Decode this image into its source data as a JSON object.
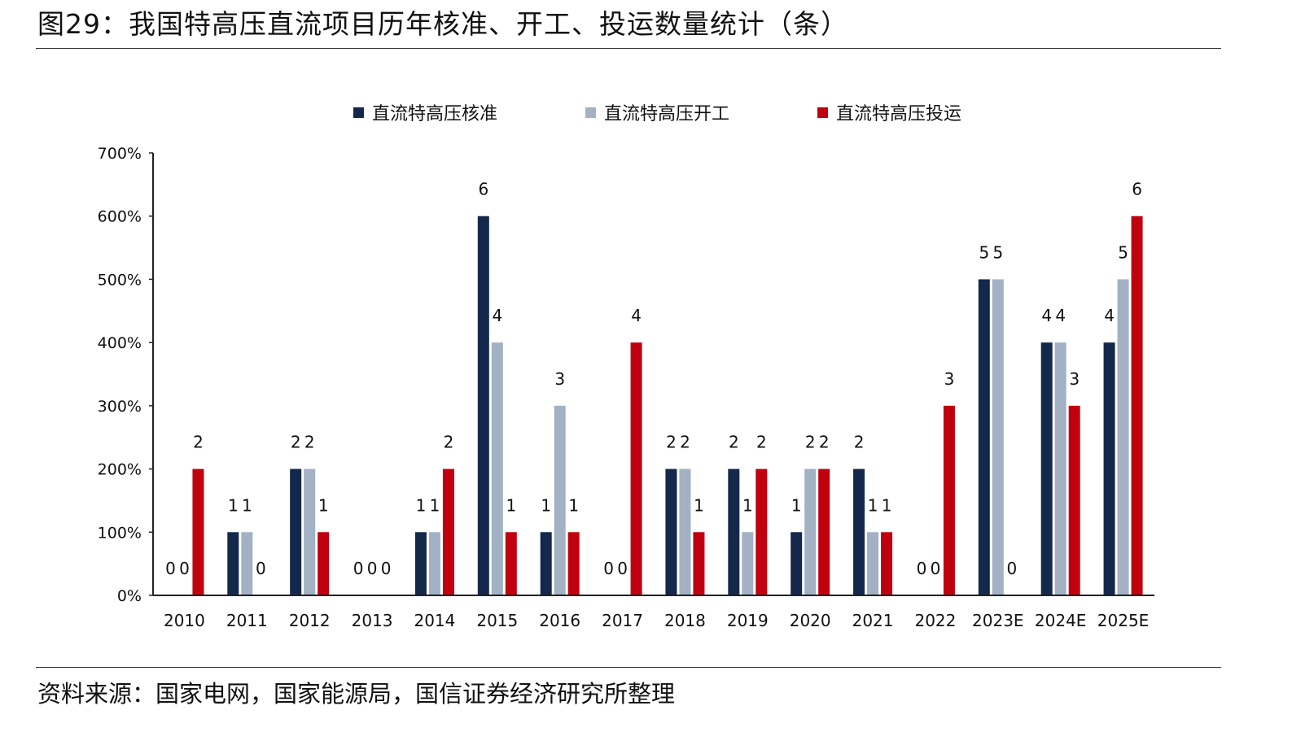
{
  "figure": {
    "title": "图29：我国特高压直流项目历年核准、开工、投运数量统计（条）",
    "source": "资料来源：国家电网，国家能源局，国信证券经济研究所整理"
  },
  "chart_data": {
    "type": "bar",
    "title": "我国特高压直流项目历年核准、开工、投运数量统计（条）",
    "xlabel": "",
    "ylabel": "",
    "ylim": [
      0,
      7
    ],
    "y_ticks": [
      0,
      1,
      2,
      3,
      4,
      5,
      6,
      7
    ],
    "y_tick_labels": [
      "0%",
      "100%",
      "200%",
      "300%",
      "400%",
      "500%",
      "600%",
      "700%"
    ],
    "legend_position": "top-center",
    "grid": false,
    "categories": [
      "2010",
      "2011",
      "2012",
      "2013",
      "2014",
      "2015",
      "2016",
      "2017",
      "2018",
      "2019",
      "2020",
      "2021",
      "2022",
      "2023E",
      "2024E",
      "2025E"
    ],
    "series": [
      {
        "name": "直流特高压核准",
        "color": "#14284b",
        "values": [
          0,
          1,
          2,
          0,
          1,
          6,
          1,
          0,
          2,
          2,
          1,
          2,
          0,
          5,
          4,
          4
        ]
      },
      {
        "name": "直流特高压开工",
        "color": "#a2b1c3",
        "values": [
          0,
          1,
          2,
          0,
          1,
          4,
          3,
          0,
          2,
          1,
          2,
          1,
          0,
          5,
          4,
          5
        ]
      },
      {
        "name": "直流特高压投运",
        "color": "#c0000f",
        "values": [
          2,
          0,
          1,
          0,
          2,
          1,
          1,
          4,
          1,
          2,
          2,
          1,
          3,
          0,
          3,
          6
        ]
      }
    ]
  }
}
